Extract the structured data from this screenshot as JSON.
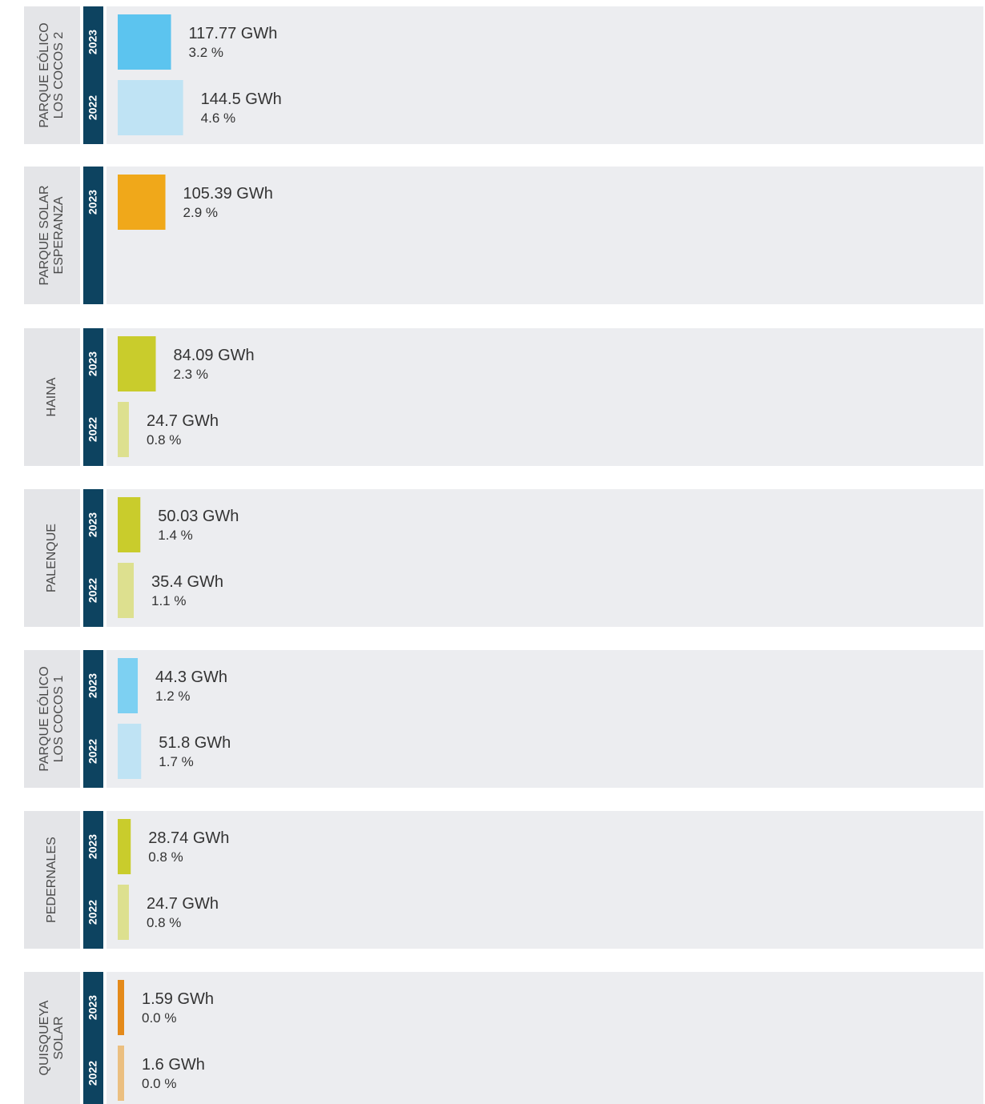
{
  "chart_data": {
    "type": "bar",
    "groups": [
      {
        "name_lines": [
          "PARQUE EÓLICO",
          "LOS COCOS 2"
        ],
        "bars": [
          {
            "year": "2023",
            "value": 117.77,
            "value_label": "117.77 GWh",
            "share": "3.2 %",
            "color": "#5cc4ef"
          },
          {
            "year": "2022",
            "value": 144.5,
            "value_label": "144.5 GWh",
            "share": "4.6 %",
            "color": "#bfe3f4"
          }
        ]
      },
      {
        "name_lines": [
          "PARQUE SOLAR",
          "ESPERANZA"
        ],
        "bars": [
          {
            "year": "2023",
            "value": 105.39,
            "value_label": "105.39 GWh",
            "share": "2.9 %",
            "color": "#f0a81a"
          }
        ]
      },
      {
        "name_lines": [
          "HAINA"
        ],
        "bars": [
          {
            "year": "2023",
            "value": 84.09,
            "value_label": "84.09 GWh",
            "share": "2.3 %",
            "color": "#c9cc2c"
          },
          {
            "year": "2022",
            "value": 24.7,
            "value_label": "24.7 GWh",
            "share": "0.8 %",
            "color": "#dde08f"
          }
        ]
      },
      {
        "name_lines": [
          "PALENQUE"
        ],
        "bars": [
          {
            "year": "2023",
            "value": 50.03,
            "value_label": "50.03 GWh",
            "share": "1.4 %",
            "color": "#c9cc2c"
          },
          {
            "year": "2022",
            "value": 35.4,
            "value_label": "35.4 GWh",
            "share": "1.1 %",
            "color": "#dde08f"
          }
        ]
      },
      {
        "name_lines": [
          "PARQUE EÓLICO",
          "LOS COCOS 1"
        ],
        "bars": [
          {
            "year": "2023",
            "value": 44.3,
            "value_label": "44.3 GWh",
            "share": "1.2 %",
            "color": "#7dd0f2"
          },
          {
            "year": "2022",
            "value": 51.8,
            "value_label": "51.8 GWh",
            "share": "1.7 %",
            "color": "#bfe3f4"
          }
        ]
      },
      {
        "name_lines": [
          "PEDERNALES"
        ],
        "bars": [
          {
            "year": "2023",
            "value": 28.74,
            "value_label": "28.74 GWh",
            "share": "0.8 %",
            "color": "#c9cc2c"
          },
          {
            "year": "2022",
            "value": 24.7,
            "value_label": "24.7 GWh",
            "share": "0.8 %",
            "color": "#dde08f"
          }
        ]
      },
      {
        "name_lines": [
          "QUISQUEYA",
          "SOLAR"
        ],
        "bars": [
          {
            "year": "2023",
            "value": 1.59,
            "value_label": "1.59 GWh",
            "share": "0.0 %",
            "color": "#e48a1a"
          },
          {
            "year": "2022",
            "value": 1.6,
            "value_label": "1.6 GWh",
            "share": "0.0 %",
            "color": "#ebbf80"
          }
        ]
      }
    ]
  }
}
